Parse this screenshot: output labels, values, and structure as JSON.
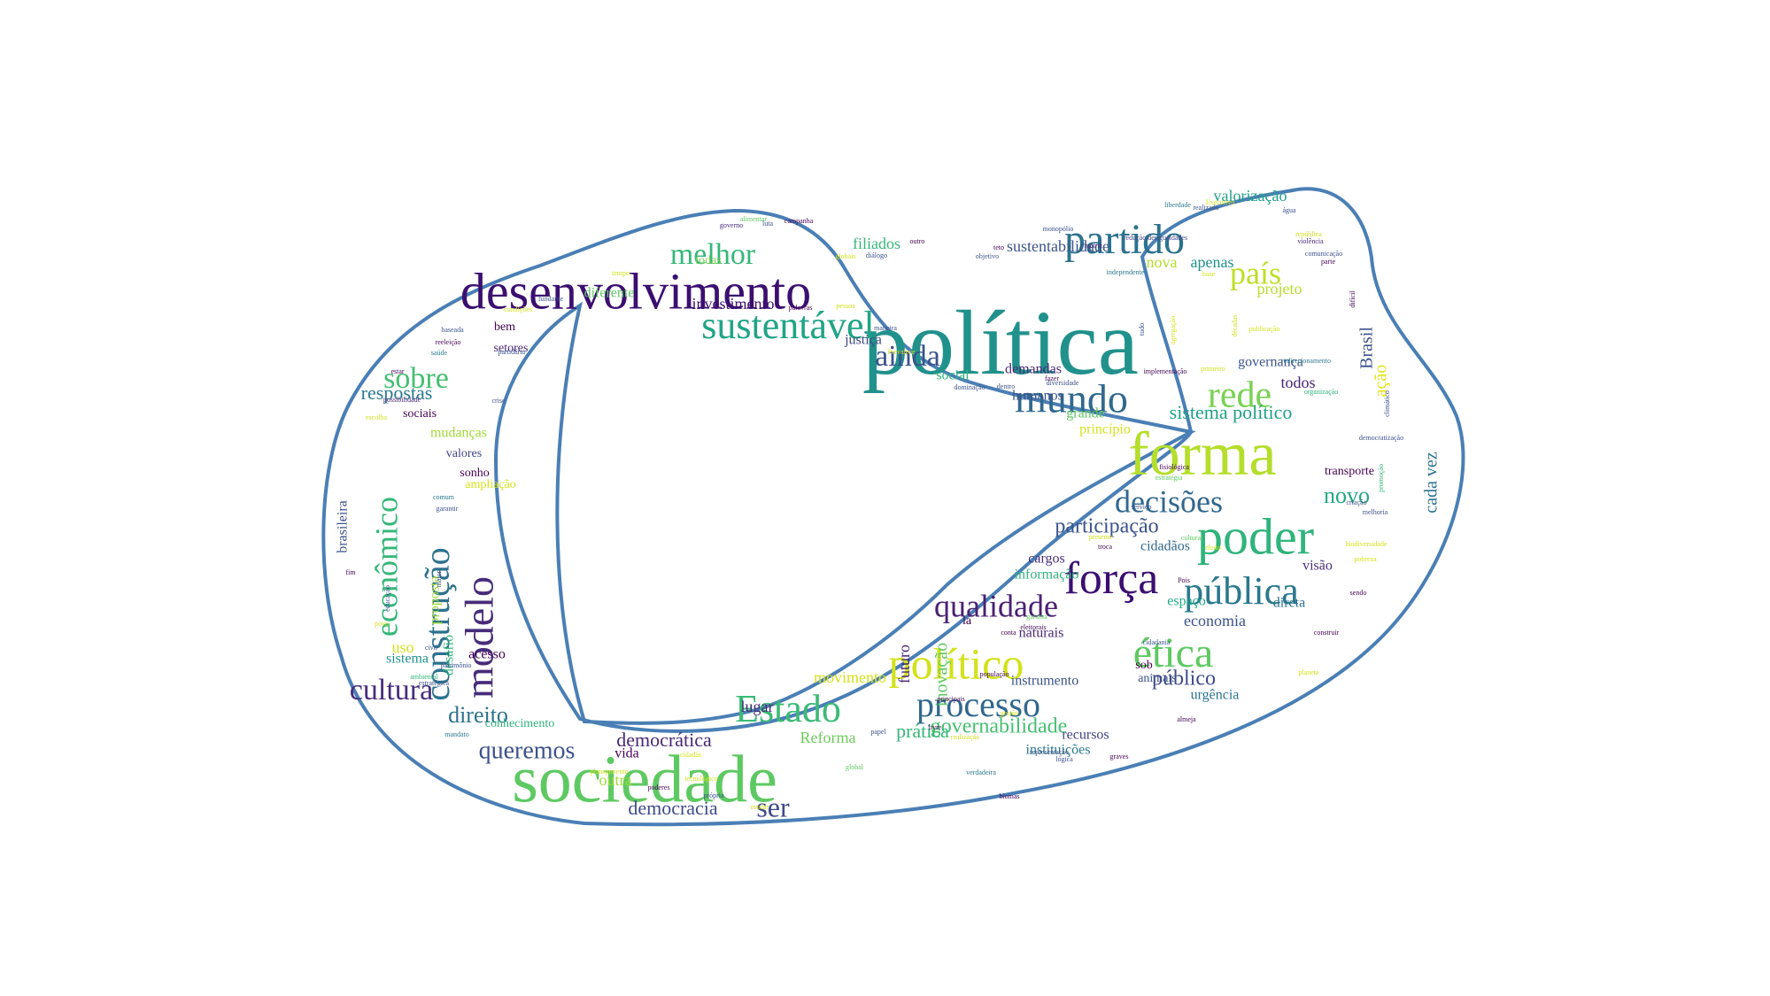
{
  "outline_color": "#4a7fb5",
  "background": "#ffffff",
  "words": [
    {
      "text": "política",
      "color": "#21918c"
    },
    {
      "text": "desenvolvimento",
      "color": "#3b0f70"
    },
    {
      "text": "sociedade",
      "color": "#5ec962"
    },
    {
      "text": "forma",
      "color": "#b5de2b"
    },
    {
      "text": "poder",
      "color": "#2fb47c"
    },
    {
      "text": "partido",
      "color": "#2c728e"
    },
    {
      "text": "sustentável",
      "color": "#20a486"
    },
    {
      "text": "mundo",
      "color": "#31688e"
    },
    {
      "text": "rede",
      "color": "#7ad151"
    },
    {
      "text": "país",
      "color": "#bddf26"
    },
    {
      "text": "ainda",
      "color": "#3b528b"
    },
    {
      "text": "melhor",
      "color": "#35b779"
    },
    {
      "text": "força",
      "color": "#3b0f70"
    },
    {
      "text": "pública",
      "color": "#2a788e"
    },
    {
      "text": "decisões",
      "color": "#31688e"
    },
    {
      "text": "político",
      "color": "#d2e21b"
    },
    {
      "text": "ética",
      "color": "#5ec962"
    },
    {
      "text": "processo",
      "color": "#31688e"
    },
    {
      "text": "Estado",
      "color": "#3aba76"
    },
    {
      "text": "qualidade",
      "color": "#482173"
    },
    {
      "text": "modelo",
      "color": "#472c7a"
    },
    {
      "text": "construção",
      "color": "#2c728e"
    },
    {
      "text": "econômico",
      "color": "#35b779"
    },
    {
      "text": "sobre",
      "color": "#44bf70"
    },
    {
      "text": "cultura",
      "color": "#472d7b"
    },
    {
      "text": "ser",
      "color": "#3e4a89"
    },
    {
      "text": "queremos",
      "color": "#3b528b"
    },
    {
      "text": "direito",
      "color": "#2c728e"
    },
    {
      "text": "novo",
      "color": "#22a884"
    },
    {
      "text": "participação",
      "color": "#3b528b"
    },
    {
      "text": "público",
      "color": "#3e4989"
    },
    {
      "text": "governabilidade",
      "color": "#44bf70"
    },
    {
      "text": "sistema político",
      "color": "#1fa187"
    },
    {
      "text": "respostas",
      "color": "#2a788e"
    },
    {
      "text": "democrática",
      "color": "#482878"
    },
    {
      "text": "democracia",
      "color": "#3e4a89"
    },
    {
      "text": "economia",
      "color": "#3b528b"
    },
    {
      "text": "prática",
      "color": "#35b779"
    },
    {
      "text": "movimento",
      "color": "#d2e21b"
    },
    {
      "text": "futuro",
      "color": "#482173"
    },
    {
      "text": "Reforma",
      "color": "#6ccd5a"
    },
    {
      "text": "cada vez",
      "color": "#2c728e"
    },
    {
      "text": "ação",
      "color": "#e5e419"
    },
    {
      "text": "Brasil",
      "color": "#3b528b"
    },
    {
      "text": "todos",
      "color": "#482173"
    },
    {
      "text": "projeto",
      "color": "#b5de2b"
    },
    {
      "text": "nova",
      "color": "#b5de2b"
    },
    {
      "text": "apenas",
      "color": "#21918c"
    },
    {
      "text": "governança",
      "color": "#3b528b"
    },
    {
      "text": "valorização",
      "color": "#1fa187"
    },
    {
      "text": "sustentabilidade",
      "color": "#3b528b"
    },
    {
      "text": "filiados",
      "color": "#35b779"
    },
    {
      "text": "todas",
      "color": "#7ad151"
    },
    {
      "text": "investimento",
      "color": "#3b0f70"
    },
    {
      "text": "diferente",
      "color": "#5ec962"
    },
    {
      "text": "justiça",
      "color": "#3e4989"
    },
    {
      "text": "social",
      "color": "#2fb47c"
    },
    {
      "text": "demandas",
      "color": "#482878"
    },
    {
      "text": "humanos",
      "color": "#3b528b"
    },
    {
      "text": "grande",
      "color": "#5ec962"
    },
    {
      "text": "princípio",
      "color": "#d2e21b"
    },
    {
      "text": "cidadãos",
      "color": "#31688e"
    },
    {
      "text": "informação",
      "color": "#2fb47c"
    },
    {
      "text": "cargos",
      "color": "#472d7b"
    },
    {
      "text": "visão",
      "color": "#472d7b"
    },
    {
      "text": "direta",
      "color": "#2c728e"
    },
    {
      "text": "espaço",
      "color": "#22a884"
    },
    {
      "text": "transporte",
      "color": "#440154"
    },
    {
      "text": "naturais",
      "color": "#482878"
    },
    {
      "text": "sob",
      "color": "#440154"
    },
    {
      "text": "animais",
      "color": "#3b528b"
    },
    {
      "text": "urgência",
      "color": "#2c728e"
    },
    {
      "text": "instrumento",
      "color": "#3b528b"
    },
    {
      "text": "recursos",
      "color": "#414487"
    },
    {
      "text": "instituições",
      "color": "#2a788e"
    },
    {
      "text": "la",
      "color": "#440154"
    },
    {
      "text": "inovação",
      "color": "#5ec962"
    },
    {
      "text": "lugar",
      "color": "#482878"
    },
    {
      "text": "vida",
      "color": "#440154"
    },
    {
      "text": "outra",
      "color": "#a2da37"
    },
    {
      "text": "conhecimento",
      "color": "#2fb47c"
    },
    {
      "text": "sistema",
      "color": "#21918c"
    },
    {
      "text": "acesso",
      "color": "#440154"
    },
    {
      "text": "uso",
      "color": "#d2e21b"
    },
    {
      "text": "desafio",
      "color": "#35b779"
    },
    {
      "text": "bem",
      "color": "#440154"
    },
    {
      "text": "proposta",
      "color": "#a2da37"
    },
    {
      "text": "brasileira",
      "color": "#3b528b"
    },
    {
      "text": "sonho",
      "color": "#440154"
    },
    {
      "text": "valores",
      "color": "#414487"
    },
    {
      "text": "mudanças",
      "color": "#a2da37"
    },
    {
      "text": "sociais",
      "color": "#440154"
    },
    {
      "text": "ampliação",
      "color": "#d2e21b"
    },
    {
      "text": "setores",
      "color": "#482878"
    },
    {
      "text": "tempo",
      "color": "#d2e21b"
    },
    {
      "text": "condições",
      "color": "#d2e21b"
    },
    {
      "text": "fundante",
      "color": "#3b528b"
    },
    {
      "text": "baseada",
      "color": "#3b528b"
    },
    {
      "text": "reeleição",
      "color": "#440154"
    },
    {
      "text": "saúde",
      "color": "#2a788e"
    },
    {
      "text": "partidário",
      "color": "#3b528b"
    },
    {
      "text": "estar",
      "color": "#440154"
    },
    {
      "text": "possibilidade",
      "color": "#482878"
    },
    {
      "text": "crise",
      "color": "#3b528b"
    },
    {
      "text": "escolha",
      "color": "#d2e21b"
    },
    {
      "text": "comum",
      "color": "#2a788e"
    },
    {
      "text": "garantir",
      "color": "#3b528b"
    },
    {
      "text": "fim",
      "color": "#440154"
    },
    {
      "text": "maior",
      "color": "#3b528b"
    },
    {
      "text": "educação",
      "color": "#3b528b"
    },
    {
      "text": "ambiental",
      "color": "#2fb47c"
    },
    {
      "text": "civil",
      "color": "#3b528b"
    },
    {
      "text": "povo",
      "color": "#d2e21b"
    },
    {
      "text": "patrimônio",
      "color": "#3b528b"
    },
    {
      "text": "estratégica",
      "color": "#3b528b"
    },
    {
      "text": "mandato",
      "color": "#2a788e"
    },
    {
      "text": "planejamento",
      "color": "#d2e21b"
    },
    {
      "text": "cidadãs",
      "color": "#d2e21b"
    },
    {
      "text": "poderes",
      "color": "#440154"
    },
    {
      "text": "tecnológico",
      "color": "#d2e21b"
    },
    {
      "text": "própria",
      "color": "#3b528b"
    },
    {
      "text": "mudar",
      "color": "#d2e21b"
    },
    {
      "text": "global",
      "color": "#5ec962"
    },
    {
      "text": "verdadeira",
      "color": "#2a788e"
    },
    {
      "text": "biomas",
      "color": "#440154"
    },
    {
      "text": "lógica",
      "color": "#3b528b"
    },
    {
      "text": "representação",
      "color": "#3b528b"
    },
    {
      "text": "graves",
      "color": "#440154"
    },
    {
      "text": "almeja",
      "color": "#440154"
    },
    {
      "text": "alimentar",
      "color": "#5ec962"
    },
    {
      "text": "campanha",
      "color": "#440154"
    },
    {
      "text": "governo",
      "color": "#482878"
    },
    {
      "text": "luta",
      "color": "#3b528b"
    },
    {
      "text": "globais",
      "color": "#d2e21b"
    },
    {
      "text": "diálogo",
      "color": "#3b528b"
    },
    {
      "text": "outro",
      "color": "#440154"
    },
    {
      "text": "objetivo",
      "color": "#3b528b"
    },
    {
      "text": "teto",
      "color": "#440154"
    },
    {
      "text": "monopólio",
      "color": "#3b528b"
    },
    {
      "text": "matriz",
      "color": "#482878"
    },
    {
      "text": "independente",
      "color": "#2a788e"
    },
    {
      "text": "redução desigualdades",
      "color": "#414487"
    },
    {
      "text": "liberdade",
      "color": "#2a788e"
    },
    {
      "text": "realizado",
      "color": "#3b528b"
    },
    {
      "text": "Executivo",
      "color": "#d2e21b"
    },
    {
      "text": "água",
      "color": "#3b528b"
    },
    {
      "text": "república",
      "color": "#d2e21b"
    },
    {
      "text": "violência",
      "color": "#482878"
    },
    {
      "text": "comunicação",
      "color": "#3b528b"
    },
    {
      "text": "parte",
      "color": "#440154"
    },
    {
      "text": "base",
      "color": "#d2e21b"
    },
    {
      "text": "tudo",
      "color": "#3b528b"
    },
    {
      "text": "agregação",
      "color": "#d2e21b"
    },
    {
      "text": "décadas",
      "color": "#d2e21b"
    },
    {
      "text": "publicação",
      "color": "#d2e21b"
    },
    {
      "text": "difícil",
      "color": "#440154"
    },
    {
      "text": "redirecionamento",
      "color": "#2a788e"
    },
    {
      "text": "implementação",
      "color": "#440154"
    },
    {
      "text": "primeiro",
      "color": "#d2e21b"
    },
    {
      "text": "organização",
      "color": "#2fb47c"
    },
    {
      "text": "climático",
      "color": "#3b528b"
    },
    {
      "text": "democratização",
      "color": "#3b528b"
    },
    {
      "text": "promoção",
      "color": "#35b779"
    },
    {
      "text": "criação",
      "color": "#3b528b"
    },
    {
      "text": "melhoria",
      "color": "#3b528b"
    },
    {
      "text": "biodiversidade",
      "color": "#d2e21b"
    },
    {
      "text": "pobreza",
      "color": "#d2e21b"
    },
    {
      "text": "sendo",
      "color": "#440154"
    },
    {
      "text": "construir",
      "color": "#440154"
    },
    {
      "text": "planeta",
      "color": "#d2e21b"
    },
    {
      "text": "fisiológica",
      "color": "#440154"
    },
    {
      "text": "estratégia",
      "color": "#5ec962"
    },
    {
      "text": "serviço",
      "color": "#3b528b"
    },
    {
      "text": "presente",
      "color": "#d2e21b"
    },
    {
      "text": "troca",
      "color": "#440154"
    },
    {
      "text": "cultural",
      "color": "#5ec962"
    },
    {
      "text": "eleito",
      "color": "#d2e21b"
    },
    {
      "text": "Pois",
      "color": "#440154"
    },
    {
      "text": "garanta",
      "color": "#5ec962"
    },
    {
      "text": "eleitorais",
      "color": "#440154"
    },
    {
      "text": "conta",
      "color": "#440154"
    },
    {
      "text": "cidadania",
      "color": "#3b528b"
    },
    {
      "text": "população",
      "color": "#440154"
    },
    {
      "text": "principais",
      "color": "#440154"
    },
    {
      "text": "gestão",
      "color": "#d2e21b"
    },
    {
      "text": "livre",
      "color": "#440154"
    },
    {
      "text": "papel",
      "color": "#3b528b"
    },
    {
      "text": "realização",
      "color": "#d2e21b"
    },
    {
      "text": "palavras",
      "color": "#440154"
    },
    {
      "text": "pessoa",
      "color": "#d2e21b"
    },
    {
      "text": "maneira",
      "color": "#3b528b"
    },
    {
      "text": "dominação",
      "color": "#3b528b"
    },
    {
      "text": "Prevalece",
      "color": "#d2e21b"
    },
    {
      "text": "dentro",
      "color": "#3b528b"
    },
    {
      "text": "fazer",
      "color": "#440154"
    },
    {
      "text": "diversidade",
      "color": "#3b528b"
    },
    {
      "text": "concepção",
      "color": "#d2e21b"
    },
    {
      "text": "bandeiras",
      "color": "#440154"
    },
    {
      "text": "onde",
      "color": "#d2e21b"
    }
  ]
}
